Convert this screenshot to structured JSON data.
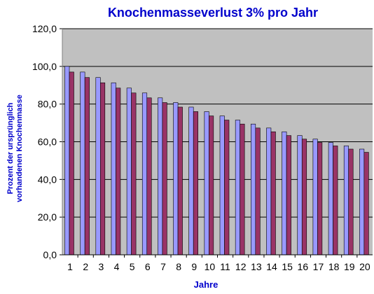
{
  "chart_data": {
    "type": "bar",
    "title": "Knochenmasseverlust 3% pro Jahr",
    "xlabel": "Jahre",
    "ylabel": [
      "Prozent der ursprünglich",
      "vorhandenen Knochenmasse"
    ],
    "categories": [
      "1",
      "2",
      "3",
      "4",
      "5",
      "6",
      "7",
      "8",
      "9",
      "10",
      "11",
      "12",
      "13",
      "14",
      "15",
      "16",
      "17",
      "18",
      "19",
      "20"
    ],
    "ylim": [
      0,
      120
    ],
    "yticks": [
      "0,0",
      "20,0",
      "40,0",
      "60,0",
      "80,0",
      "100,0",
      "120,0"
    ],
    "ytick_values": [
      0,
      20,
      40,
      60,
      80,
      100,
      120
    ],
    "grid": true,
    "legend": "none",
    "series": [
      {
        "color": "#9999ff",
        "values": [
          100.0,
          97.0,
          94.1,
          91.3,
          88.5,
          85.9,
          83.3,
          80.8,
          78.4,
          76.0,
          73.7,
          71.5,
          69.4,
          67.3,
          65.3,
          63.3,
          61.4,
          59.6,
          57.8,
          56.1
        ]
      },
      {
        "color": "#993366",
        "values": [
          97.0,
          94.1,
          91.3,
          88.5,
          85.9,
          83.3,
          80.8,
          78.4,
          76.0,
          73.7,
          71.5,
          69.4,
          67.3,
          65.3,
          63.3,
          61.4,
          59.6,
          57.8,
          56.1,
          54.4
        ]
      }
    ],
    "colors": {
      "plot_background": "#c0c0c0",
      "gridline": "#000000",
      "title": "#0000cc",
      "axis_title": "#0000cc",
      "tick_label": "#000000"
    }
  }
}
